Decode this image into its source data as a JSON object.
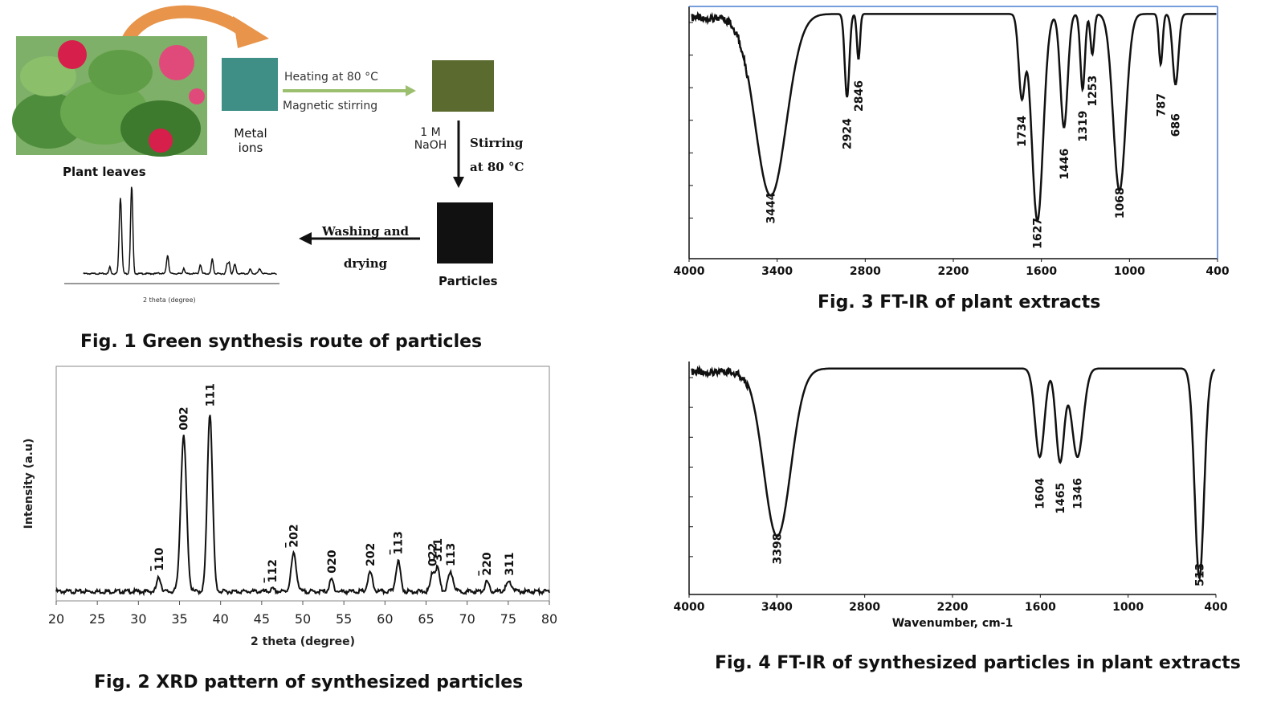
{
  "fig1": {
    "caption": "Fig. 1 Green synthesis route of particles",
    "plant_label": "Plant leaves",
    "metal_label": "Metal\nions",
    "heat_label": "Heating at 80 °C",
    "stir_label": "Magnetic stirring",
    "naoh_label": "1 M\nNaOH",
    "stirring_label": "Stirring\nat 80 °C",
    "wash_label": "Washing and\ndrying",
    "particles_label": "Particles",
    "mini_xrd_xlabel": "2 theta (degree)",
    "colors": {
      "arrow_orange": "#e8944a",
      "metal": "#3f8f86",
      "solution": "#5b6a2e",
      "particles": "#111111",
      "flower": "#d61f4b"
    }
  },
  "chart_data": [
    {
      "id": "fig2",
      "type": "line",
      "title": "Fig. 2 XRD pattern of synthesized particles",
      "xlabel": "2 theta (degree)",
      "ylabel": "Intensity (a.u)",
      "xlim": [
        20,
        80
      ],
      "xticks": [
        20,
        25,
        30,
        35,
        40,
        45,
        50,
        55,
        60,
        65,
        70,
        75,
        80
      ],
      "ylim": [
        0,
        100
      ],
      "baseline": 4,
      "peaks": [
        {
          "x": 32.5,
          "h": 6,
          "w": 0.35,
          "label": "110",
          "bar": true
        },
        {
          "x": 35.5,
          "h": 66,
          "w": 0.5,
          "label": "002"
        },
        {
          "x": 38.7,
          "h": 76,
          "w": 0.45,
          "label": "111"
        },
        {
          "x": 46.3,
          "h": 1,
          "w": 0.3,
          "label": "112",
          "bar": true
        },
        {
          "x": 48.9,
          "h": 16,
          "w": 0.45,
          "label": "202",
          "bar": true
        },
        {
          "x": 53.5,
          "h": 5,
          "w": 0.35,
          "label": "020"
        },
        {
          "x": 58.2,
          "h": 8,
          "w": 0.4,
          "label": "202"
        },
        {
          "x": 61.6,
          "h": 13,
          "w": 0.4,
          "label": "113",
          "bar": true
        },
        {
          "x": 65.8,
          "h": 8,
          "w": 0.35,
          "label": "022"
        },
        {
          "x": 66.4,
          "h": 10,
          "w": 0.35,
          "label": "311",
          "bar": true
        },
        {
          "x": 68.0,
          "h": 8,
          "w": 0.45,
          "label": "113"
        },
        {
          "x": 72.4,
          "h": 4,
          "w": 0.35,
          "label": "220",
          "bar": true
        },
        {
          "x": 75.1,
          "h": 4,
          "w": 0.5,
          "label": "311"
        }
      ]
    },
    {
      "id": "fig3",
      "type": "line",
      "title": "Fig. 3 FT-IR of plant extracts",
      "xlabel": "",
      "xlim": [
        4000,
        400
      ],
      "xticks": [
        4000,
        3400,
        2800,
        2200,
        1600,
        1000,
        400
      ],
      "ylim": [
        0,
        100
      ],
      "baseline": 97,
      "bands": [
        {
          "x": 3444,
          "depth": 72,
          "w": 150,
          "label": "3444"
        },
        {
          "x": 2924,
          "depth": 33,
          "w": 22,
          "label": "2924"
        },
        {
          "x": 2846,
          "depth": 18,
          "w": 15,
          "label": "2846"
        },
        {
          "x": 1734,
          "depth": 32,
          "w": 30,
          "label": "1734"
        },
        {
          "x": 1627,
          "depth": 82,
          "w": 55,
          "label": "1627"
        },
        {
          "x": 1446,
          "depth": 45,
          "w": 35,
          "label": "1446"
        },
        {
          "x": 1319,
          "depth": 30,
          "w": 22,
          "label": "1319"
        },
        {
          "x": 1253,
          "depth": 16,
          "w": 18,
          "label": "1253"
        },
        {
          "x": 1068,
          "depth": 70,
          "w": 60,
          "label": "1068"
        },
        {
          "x": 787,
          "depth": 20,
          "w": 18,
          "label": "787"
        },
        {
          "x": 686,
          "depth": 28,
          "w": 28,
          "label": "686"
        }
      ]
    },
    {
      "id": "fig4",
      "type": "line",
      "title": "Fig. 4 FT-IR of synthesized particles in plant extracts",
      "xlabel": "Wavenumber, cm-1",
      "xlim": [
        4000,
        400
      ],
      "xticks": [
        4000,
        3400,
        2800,
        2200,
        1600,
        1000,
        400
      ],
      "ylim": [
        0,
        100
      ],
      "baseline": 97,
      "bands": [
        {
          "x": 3398,
          "depth": 72,
          "w": 130,
          "label": "3398"
        },
        {
          "x": 1604,
          "depth": 38,
          "w": 45,
          "label": "1604"
        },
        {
          "x": 1465,
          "depth": 40,
          "w": 40,
          "label": "1465"
        },
        {
          "x": 1346,
          "depth": 38,
          "w": 55,
          "label": "1346"
        },
        {
          "x": 513,
          "depth": 90,
          "w": 45,
          "label": "513"
        }
      ]
    }
  ]
}
